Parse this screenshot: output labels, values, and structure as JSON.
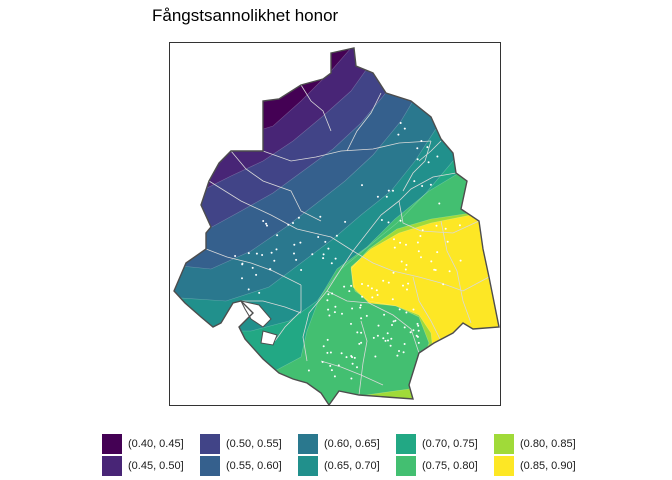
{
  "title": "Fångstsannolikhet honor",
  "legend": {
    "items": [
      {
        "label": "(0.40, 0.45]",
        "color": "#440154"
      },
      {
        "label": "(0.45, 0.50]",
        "color": "#482576"
      },
      {
        "label": "(0.50, 0.55]",
        "color": "#414487"
      },
      {
        "label": "(0.55, 0.60]",
        "color": "#35608D"
      },
      {
        "label": "(0.60, 0.65]",
        "color": "#2A788E"
      },
      {
        "label": "(0.65, 0.70]",
        "color": "#21908C"
      },
      {
        "label": "(0.70, 0.75]",
        "color": "#22A884"
      },
      {
        "label": "(0.75, 0.80]",
        "color": "#43BF71"
      },
      {
        "label": "(0.80, 0.85]",
        "color": "#A0DA39"
      },
      {
        "label": "(0.85, 0.90]",
        "color": "#FDE725"
      }
    ]
  },
  "colors": {
    "outline": "#4d4d4d",
    "inner_borders": "#d9d9d9",
    "points": "#ffffff",
    "frame": "#333333"
  }
}
